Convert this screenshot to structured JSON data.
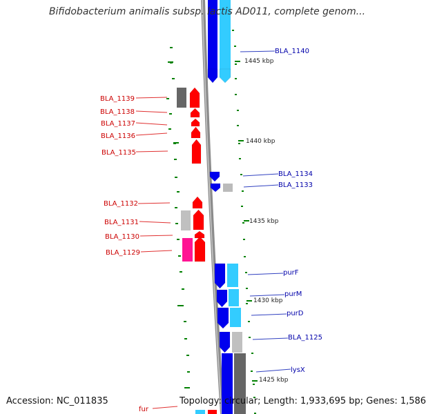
{
  "title": "Bifidobacterium animalis subsp. lactis AD011, complete genom...",
  "footer": {
    "accession": "Accession: NC_011835",
    "summary": "Topology: circular; Length: 1,933,695 bp; Genes: 1,586"
  },
  "colors": {
    "backbone": "#8c8c8c",
    "forward_gene": "#ff0000",
    "reverse_gene": "#0000ee",
    "reverse_cds": "#33ccff",
    "tick": "#008000",
    "left_label": "#cc0000",
    "right_label": "#0000aa"
  },
  "scale_ticks": [
    "1445 kbp",
    "1440 kbp",
    "1435 kbp",
    "1430 kbp",
    "1425 kbp"
  ],
  "left_labels": [
    "BLA_1139",
    "BLA_1138",
    "BLA_1137",
    "BLA_1136",
    "BLA_1135",
    "BLA_1132",
    "BLA_1131",
    "BLA_1130",
    "BLA_1129",
    "fur"
  ],
  "right_labels": [
    "BLA_1140",
    "BLA_1134",
    "BLA_1133",
    "purF",
    "purM",
    "purD",
    "BLA_1125",
    "lysX"
  ]
}
